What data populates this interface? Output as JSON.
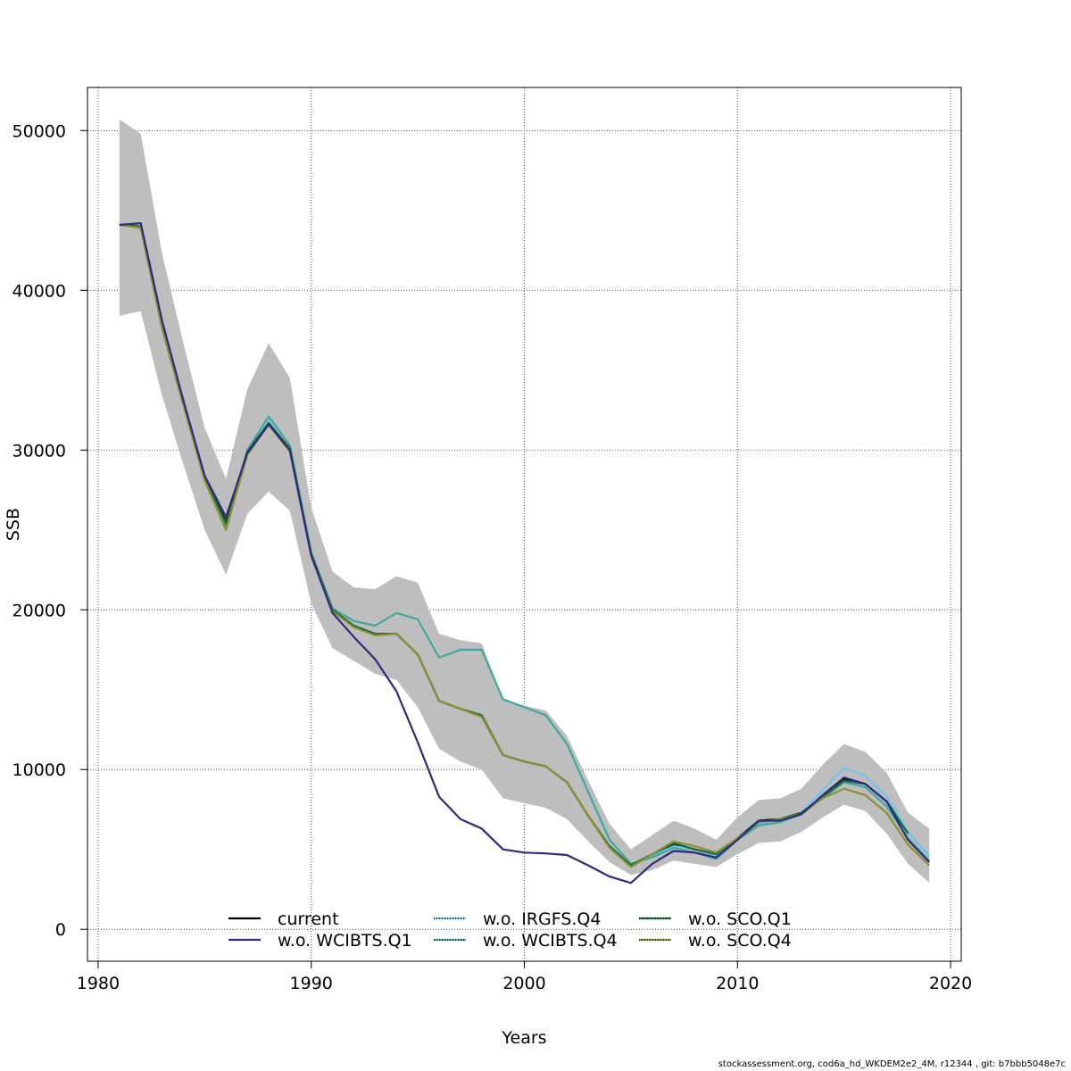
{
  "chart_data": {
    "type": "line",
    "xlabel": "Years",
    "ylabel": "SSB",
    "xlim": [
      1979.5,
      2020.5
    ],
    "ylim": [
      -2000,
      52700
    ],
    "x_ticks": [
      1980,
      1990,
      2000,
      2010,
      2020
    ],
    "x_tick_labels": [
      "1980",
      "1990",
      "2000",
      "2010",
      "2020"
    ],
    "y_ticks": [
      0,
      10000,
      20000,
      30000,
      40000,
      50000
    ],
    "y_tick_labels": [
      "0",
      "10000",
      "20000",
      "30000",
      "40000",
      "50000"
    ],
    "grid": true,
    "legend_position": "bottom",
    "confidence_band": {
      "color": "#bebebe",
      "x": [
        1981,
        1982,
        1983,
        1984,
        1985,
        1986,
        1987,
        1988,
        1989,
        1990,
        1991,
        1992,
        1993,
        1994,
        1995,
        1996,
        1997,
        1998,
        1999,
        2000,
        2001,
        2002,
        2003,
        2004,
        2005,
        2006,
        2007,
        2008,
        2009,
        2010,
        2011,
        2012,
        2013,
        2014,
        2015,
        2016,
        2017,
        2018,
        2019
      ],
      "upper": [
        50700,
        49800,
        42300,
        36700,
        31400,
        28200,
        33800,
        36700,
        34500,
        26400,
        22400,
        21400,
        21300,
        22100,
        21700,
        18500,
        18100,
        17900,
        14400,
        14000,
        13700,
        12100,
        9300,
        6600,
        5000,
        5900,
        6800,
        6300,
        5600,
        7000,
        8100,
        8200,
        8800,
        10300,
        11600,
        11100,
        9800,
        7300,
        6300
      ],
      "lower": [
        38400,
        38700,
        33400,
        29100,
        25000,
        22200,
        26000,
        27400,
        26200,
        20400,
        17600,
        16800,
        16000,
        15600,
        13900,
        11300,
        10500,
        10000,
        8200,
        7900,
        7600,
        6900,
        5500,
        4200,
        3400,
        3700,
        4300,
        4100,
        3900,
        4700,
        5400,
        5500,
        6100,
        7000,
        7800,
        7400,
        6000,
        4100,
        2900
      ]
    },
    "x": [
      1981,
      1982,
      1983,
      1984,
      1985,
      1986,
      1987,
      1988,
      1989,
      1990,
      1991,
      1992,
      1993,
      1994,
      1995,
      1996,
      1997,
      1998,
      1999,
      2000,
      2001,
      2002,
      2003,
      2004,
      2005,
      2006,
      2007,
      2008,
      2009,
      2010,
      2011,
      2012,
      2013,
      2014,
      2015,
      2016,
      2017,
      2018,
      2019
    ],
    "series": [
      {
        "name": "current",
        "color": "#000000",
        "values": [
          44100,
          44000,
          37800,
          33000,
          28300,
          25500,
          29900,
          31700,
          30100,
          23500,
          20000,
          19000,
          18500,
          18500,
          17200,
          14300,
          13800,
          13400,
          10900,
          10500,
          10200,
          9200,
          7100,
          5200,
          4000,
          4700,
          5300,
          5000,
          4700,
          5700,
          6800,
          6900,
          7300,
          8300,
          9400,
          9100,
          8000,
          6000,
          null
        ]
      },
      {
        "name": "w.o. WCIBTS.Q1",
        "color": "#2e2a80",
        "values": [
          44100,
          44200,
          38100,
          33100,
          28400,
          25800,
          29800,
          31600,
          30000,
          23400,
          19800,
          18300,
          16900,
          14900,
          11700,
          8300,
          6900,
          6300,
          5000,
          4800,
          4750,
          4650,
          4000,
          3300,
          2900,
          4100,
          4900,
          4800,
          4500,
          5600,
          6800,
          6800,
          7200,
          8400,
          9500,
          9100,
          8000,
          5600,
          4200
        ]
      },
      {
        "name": "w.o. IRGFS.Q4",
        "color": "#6dc3ef",
        "values": [
          44100,
          44000,
          37700,
          32900,
          28200,
          25300,
          29800,
          31800,
          30100,
          23500,
          20000,
          19000,
          18500,
          18500,
          17200,
          14300,
          13800,
          13400,
          10900,
          10500,
          10200,
          9200,
          7100,
          5200,
          4000,
          4600,
          5200,
          5000,
          4600,
          5600,
          6600,
          6700,
          7300,
          8700,
          10100,
          9600,
          8300,
          6100,
          4600
        ]
      },
      {
        "name": "w.o. WCIBTS.Q4",
        "color": "#3fa89c",
        "values": [
          44100,
          44000,
          37800,
          32900,
          28200,
          25200,
          30000,
          32100,
          30300,
          23600,
          20100,
          19300,
          19000,
          19800,
          19400,
          17000,
          17500,
          17500,
          14400,
          13900,
          13400,
          11600,
          8600,
          5600,
          4100,
          4500,
          5100,
          4800,
          4400,
          5600,
          6500,
          6700,
          7200,
          8200,
          9200,
          8900,
          7700,
          5700,
          4300
        ]
      },
      {
        "name": "w.o. SCO.Q1",
        "color": "#1a6b36",
        "values": [
          44100,
          44000,
          37800,
          33000,
          28300,
          25400,
          29900,
          31700,
          30100,
          23500,
          20000,
          19000,
          18500,
          18500,
          17200,
          14300,
          13800,
          13400,
          10900,
          10500,
          10200,
          9200,
          7100,
          5200,
          4000,
          4700,
          5400,
          5000,
          4700,
          5700,
          6700,
          6900,
          7300,
          8300,
          9300,
          9100,
          8000,
          6000,
          null
        ]
      },
      {
        "name": "w.o. SCO.Q4",
        "color": "#8c8f32",
        "values": [
          44100,
          43900,
          37600,
          32800,
          28100,
          25000,
          29700,
          31600,
          29900,
          23400,
          19900,
          18900,
          18400,
          18500,
          17200,
          14300,
          13800,
          13300,
          10900,
          10500,
          10200,
          9200,
          7100,
          5100,
          3900,
          4700,
          5500,
          5200,
          4800,
          5700,
          6700,
          6900,
          7200,
          8200,
          8800,
          8400,
          7300,
          5300,
          4000
        ]
      }
    ]
  },
  "footer_text": "stockassessment.org, cod6a_hd_WKDEM2e2_4M, r12344 , git: b7bbb5048e7c"
}
